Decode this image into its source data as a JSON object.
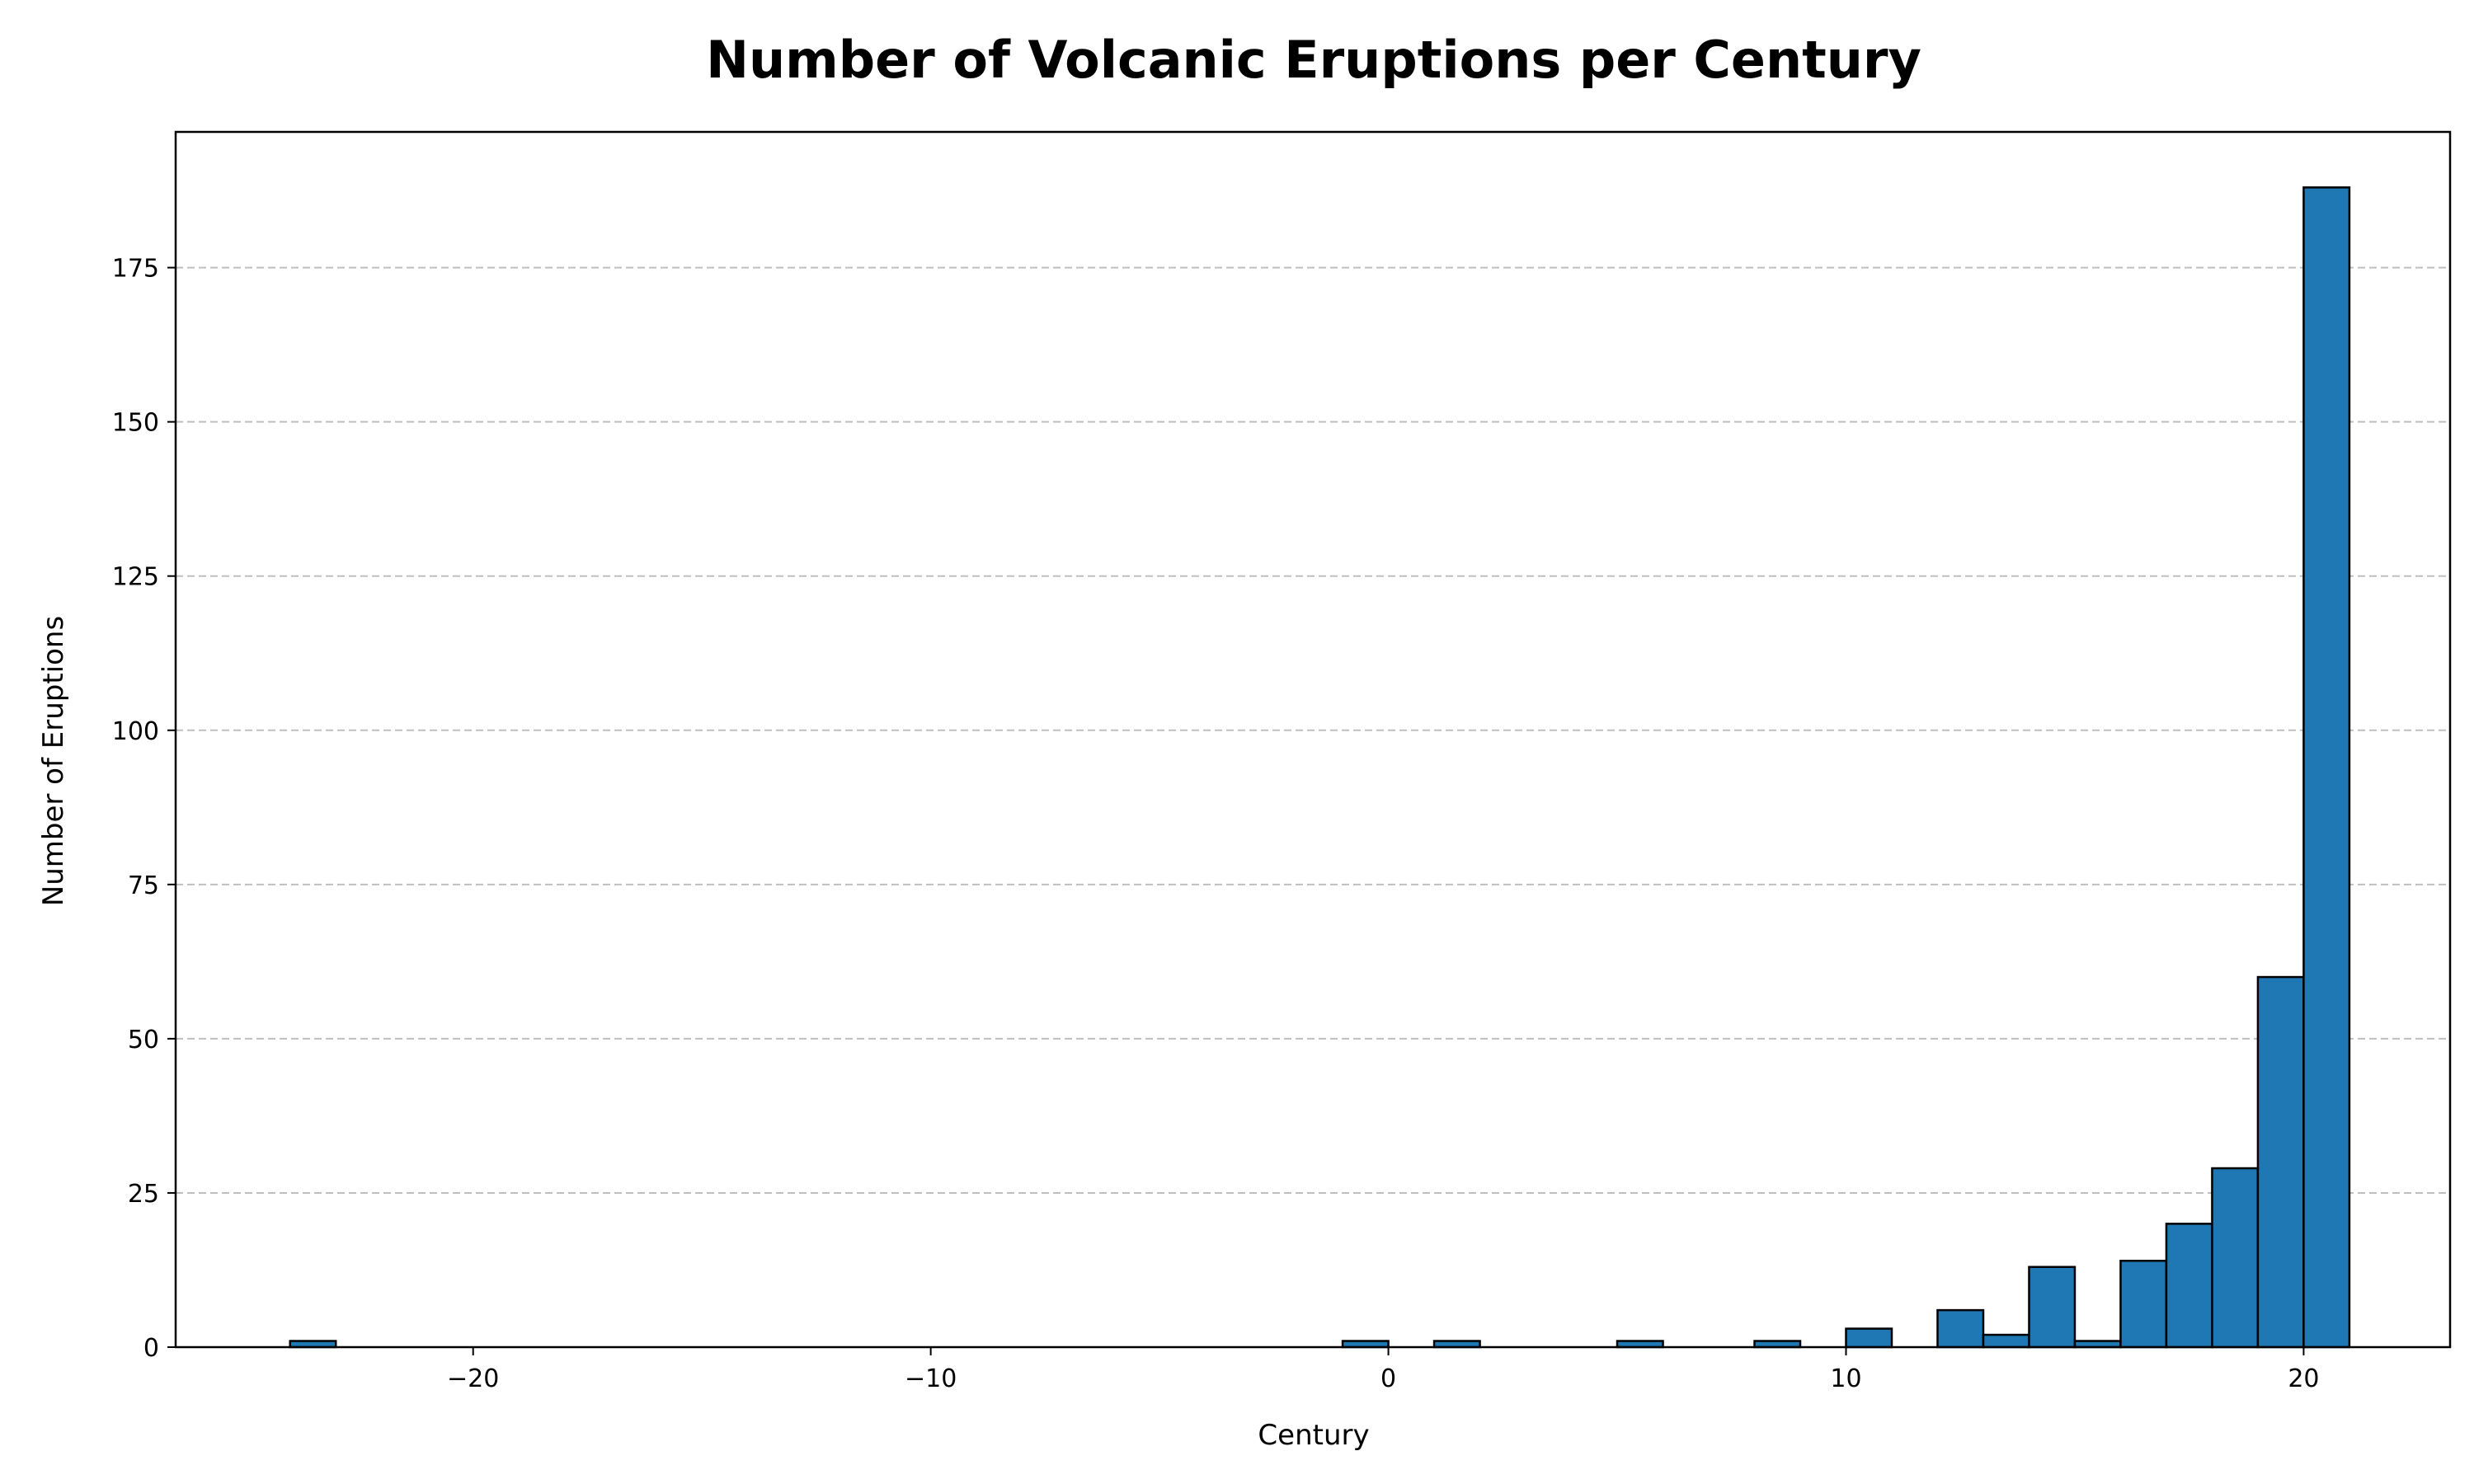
{
  "chart_data": {
    "type": "bar",
    "title": "Number of Volcanic Eruptions per Century",
    "xlabel": "Century",
    "ylabel": "Number of Eruptions",
    "xlim": [
      -26.5,
      23.2
    ],
    "ylim": [
      0,
      197
    ],
    "xticks": [
      -20,
      -10,
      0,
      10,
      20
    ],
    "xtick_labels": [
      "−20",
      "−10",
      "0",
      "10",
      "20"
    ],
    "yticks": [
      0,
      25,
      50,
      75,
      100,
      125,
      150,
      175
    ],
    "grid": "y-dashed",
    "bar_color": "#1f77b4",
    "bin_width": 1,
    "bins": [
      {
        "start": -24,
        "value": 1
      },
      {
        "start": -1,
        "value": 1
      },
      {
        "start": 1,
        "value": 1
      },
      {
        "start": 5,
        "value": 1
      },
      {
        "start": 8,
        "value": 1
      },
      {
        "start": 10,
        "value": 3
      },
      {
        "start": 12,
        "value": 6
      },
      {
        "start": 13,
        "value": 2
      },
      {
        "start": 14,
        "value": 13
      },
      {
        "start": 15,
        "value": 1
      },
      {
        "start": 16,
        "value": 14
      },
      {
        "start": 17,
        "value": 20
      },
      {
        "start": 18,
        "value": 29
      },
      {
        "start": 19,
        "value": 60
      },
      {
        "start": 20,
        "value": 188
      }
    ]
  }
}
